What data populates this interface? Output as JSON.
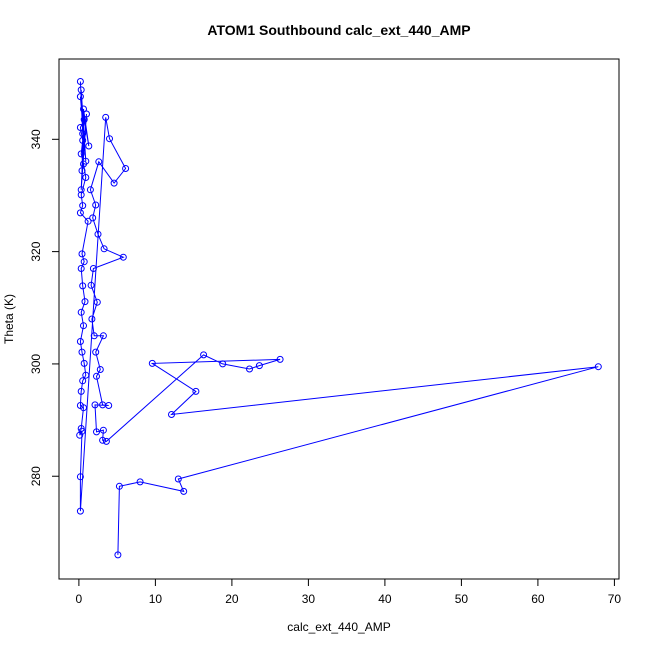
{
  "chart_data": {
    "type": "line",
    "title": "ATOM1 Southbound calc_ext_440_AMP",
    "xlabel": "calc_ext_440_AMP",
    "ylabel": "Theta (K)",
    "xlim": [
      -2.6,
      70.6
    ],
    "ylim": [
      261.7,
      354.3
    ],
    "x_ticks": [
      0,
      10,
      20,
      30,
      40,
      50,
      60,
      70
    ],
    "y_ticks": [
      280,
      300,
      320,
      340
    ],
    "grid": false,
    "legend": "none",
    "color": "#0000ff",
    "series": [
      {
        "marker": "open-circle",
        "points": [
          [
            0.2,
            350.3
          ],
          [
            0.5,
            341.0
          ],
          [
            0.3,
            348.8
          ],
          [
            0.9,
            336.1
          ],
          [
            0.2,
            347.6
          ],
          [
            1.3,
            338.8
          ],
          [
            0.6,
            345.4
          ],
          [
            0.4,
            334.4
          ],
          [
            1.0,
            344.5
          ],
          [
            0.3,
            331.0
          ],
          [
            0.7,
            343.5
          ],
          [
            0.2,
            342.1
          ],
          [
            0.5,
            339.8
          ],
          [
            0.3,
            337.4
          ],
          [
            0.6,
            335.6
          ],
          [
            0.9,
            333.2
          ],
          [
            0.3,
            330.1
          ],
          [
            0.5,
            328.2
          ],
          [
            0.2,
            326.9
          ],
          [
            1.2,
            325.4
          ],
          [
            0.4,
            319.6
          ],
          [
            0.7,
            318.2
          ],
          [
            0.3,
            317.0
          ],
          [
            0.5,
            313.9
          ],
          [
            0.8,
            311.1
          ],
          [
            0.3,
            309.2
          ],
          [
            0.6,
            306.8
          ],
          [
            0.2,
            304.0
          ],
          [
            0.4,
            302.1
          ],
          [
            0.7,
            300.1
          ],
          [
            0.9,
            298.0
          ],
          [
            0.5,
            297.0
          ],
          [
            0.3,
            295.1
          ],
          [
            0.2,
            292.6
          ],
          [
            0.6,
            292.2
          ],
          [
            0.3,
            288.5
          ],
          [
            0.1,
            287.3
          ],
          [
            0.4,
            288.0
          ],
          [
            0.2,
            279.9
          ],
          [
            0.2,
            273.8
          ],
          [
            3.5,
            343.9
          ],
          [
            4.0,
            340.1
          ],
          [
            6.1,
            334.8
          ],
          [
            4.6,
            332.2
          ],
          [
            2.6,
            336.0
          ],
          [
            1.5,
            331.0
          ],
          [
            2.2,
            328.3
          ],
          [
            1.8,
            326.0
          ],
          [
            2.5,
            323.1
          ],
          [
            3.3,
            320.5
          ],
          [
            5.8,
            319.0
          ],
          [
            1.9,
            317.0
          ],
          [
            1.6,
            314.0
          ],
          [
            2.4,
            311.0
          ],
          [
            1.7,
            308.0
          ],
          [
            2.0,
            305.0
          ],
          [
            3.2,
            305.0
          ],
          [
            2.2,
            302.1
          ],
          [
            2.8,
            299.0
          ],
          [
            2.3,
            297.8
          ],
          [
            3.1,
            292.7
          ],
          [
            3.9,
            292.6
          ],
          [
            2.1,
            292.7
          ],
          [
            2.3,
            287.9
          ],
          [
            3.2,
            288.2
          ],
          [
            3.1,
            286.4
          ],
          [
            3.6,
            286.2
          ],
          [
            16.3,
            301.6
          ],
          [
            18.8,
            300.0
          ],
          [
            22.3,
            299.1
          ],
          [
            23.6,
            299.7
          ],
          [
            26.3,
            300.8
          ],
          [
            9.6,
            300.1
          ],
          [
            15.3,
            295.1
          ],
          [
            12.1,
            291.0
          ],
          [
            67.9,
            299.5
          ],
          [
            13.0,
            279.5
          ],
          [
            13.7,
            277.3
          ],
          [
            8.0,
            279.0
          ],
          [
            5.3,
            278.2
          ],
          [
            5.1,
            266.0
          ]
        ]
      }
    ]
  }
}
